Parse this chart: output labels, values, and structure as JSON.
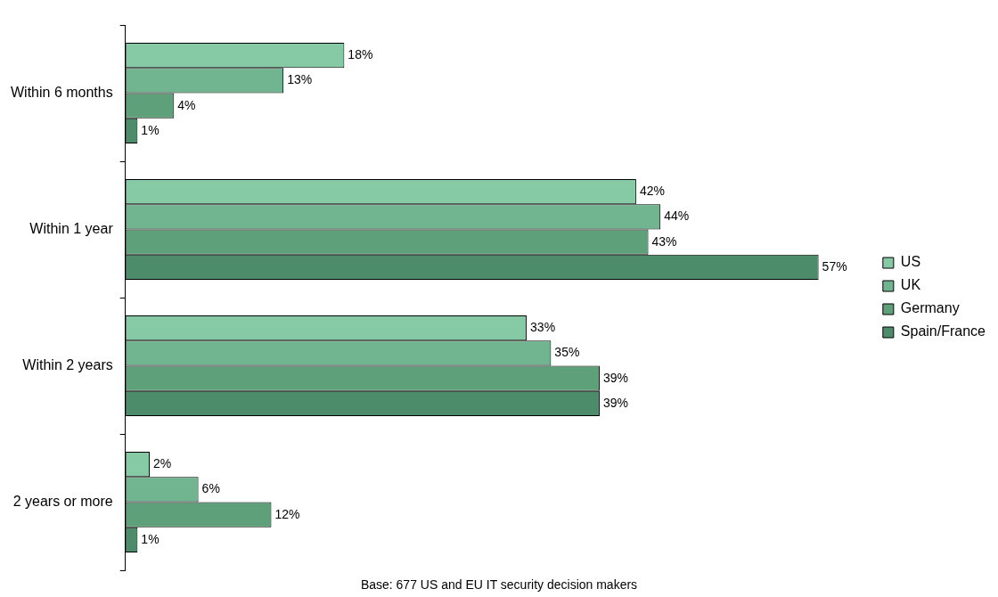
{
  "chart_data": {
    "type": "bar",
    "orientation": "horizontal",
    "categories": [
      "Within 6 months",
      "Within 1 year",
      "Within 2 years",
      "2 years or more"
    ],
    "series": [
      {
        "name": "US",
        "color": "#86c9a5",
        "values": [
          18,
          42,
          33,
          2
        ],
        "value_labels": [
          "18%",
          "42%",
          "33%",
          "2%"
        ]
      },
      {
        "name": "UK",
        "color": "#70b58f",
        "values": [
          13,
          44,
          35,
          6
        ],
        "value_labels": [
          "13%",
          "44%",
          "35%",
          "6%"
        ]
      },
      {
        "name": "Germany",
        "color": "#5ea07a",
        "values": [
          4,
          43,
          39,
          12
        ],
        "value_labels": [
          "4%",
          "43%",
          "39%",
          "12%"
        ]
      },
      {
        "name": "Spain/France",
        "color": "#4c8c6a",
        "values": [
          1,
          57,
          39,
          1
        ],
        "value_labels": [
          "1%",
          "57%",
          "39%",
          "1%"
        ]
      }
    ],
    "legend": "right",
    "annotations": [
      "Base: 677 US and EU IT security decision makers"
    ]
  }
}
